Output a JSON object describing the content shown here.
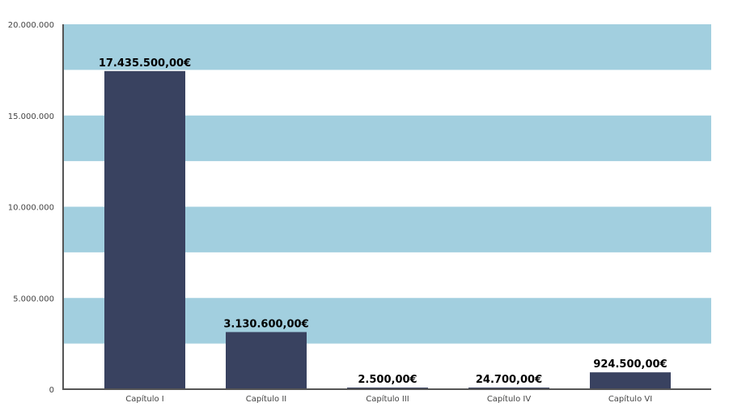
{
  "chart_data": {
    "type": "bar",
    "categories": [
      "Capítulo I",
      "Capítulo II",
      "Capítulo III",
      "Capítulo IV",
      "Capítulo VI"
    ],
    "values": [
      17435500,
      3130600,
      2500,
      24700,
      924500
    ],
    "data_labels": [
      "17.435.500,00€",
      "3.130.600,00€",
      "2.500,00€",
      "24.700,00€",
      "924.500,00€"
    ],
    "yticks": [
      0,
      5000000,
      10000000,
      15000000,
      20000000
    ],
    "ytick_labels": [
      "0",
      "5.000.000",
      "10.000.000",
      "15.000.000",
      "20.000.000"
    ],
    "ylim": [
      0,
      20000000
    ],
    "title": "",
    "xlabel": "",
    "ylabel": "",
    "grid": "alternating horizontal bands",
    "colors": {
      "bar": "#394260",
      "band": "#a2cfdf",
      "axis": "#555555"
    }
  }
}
